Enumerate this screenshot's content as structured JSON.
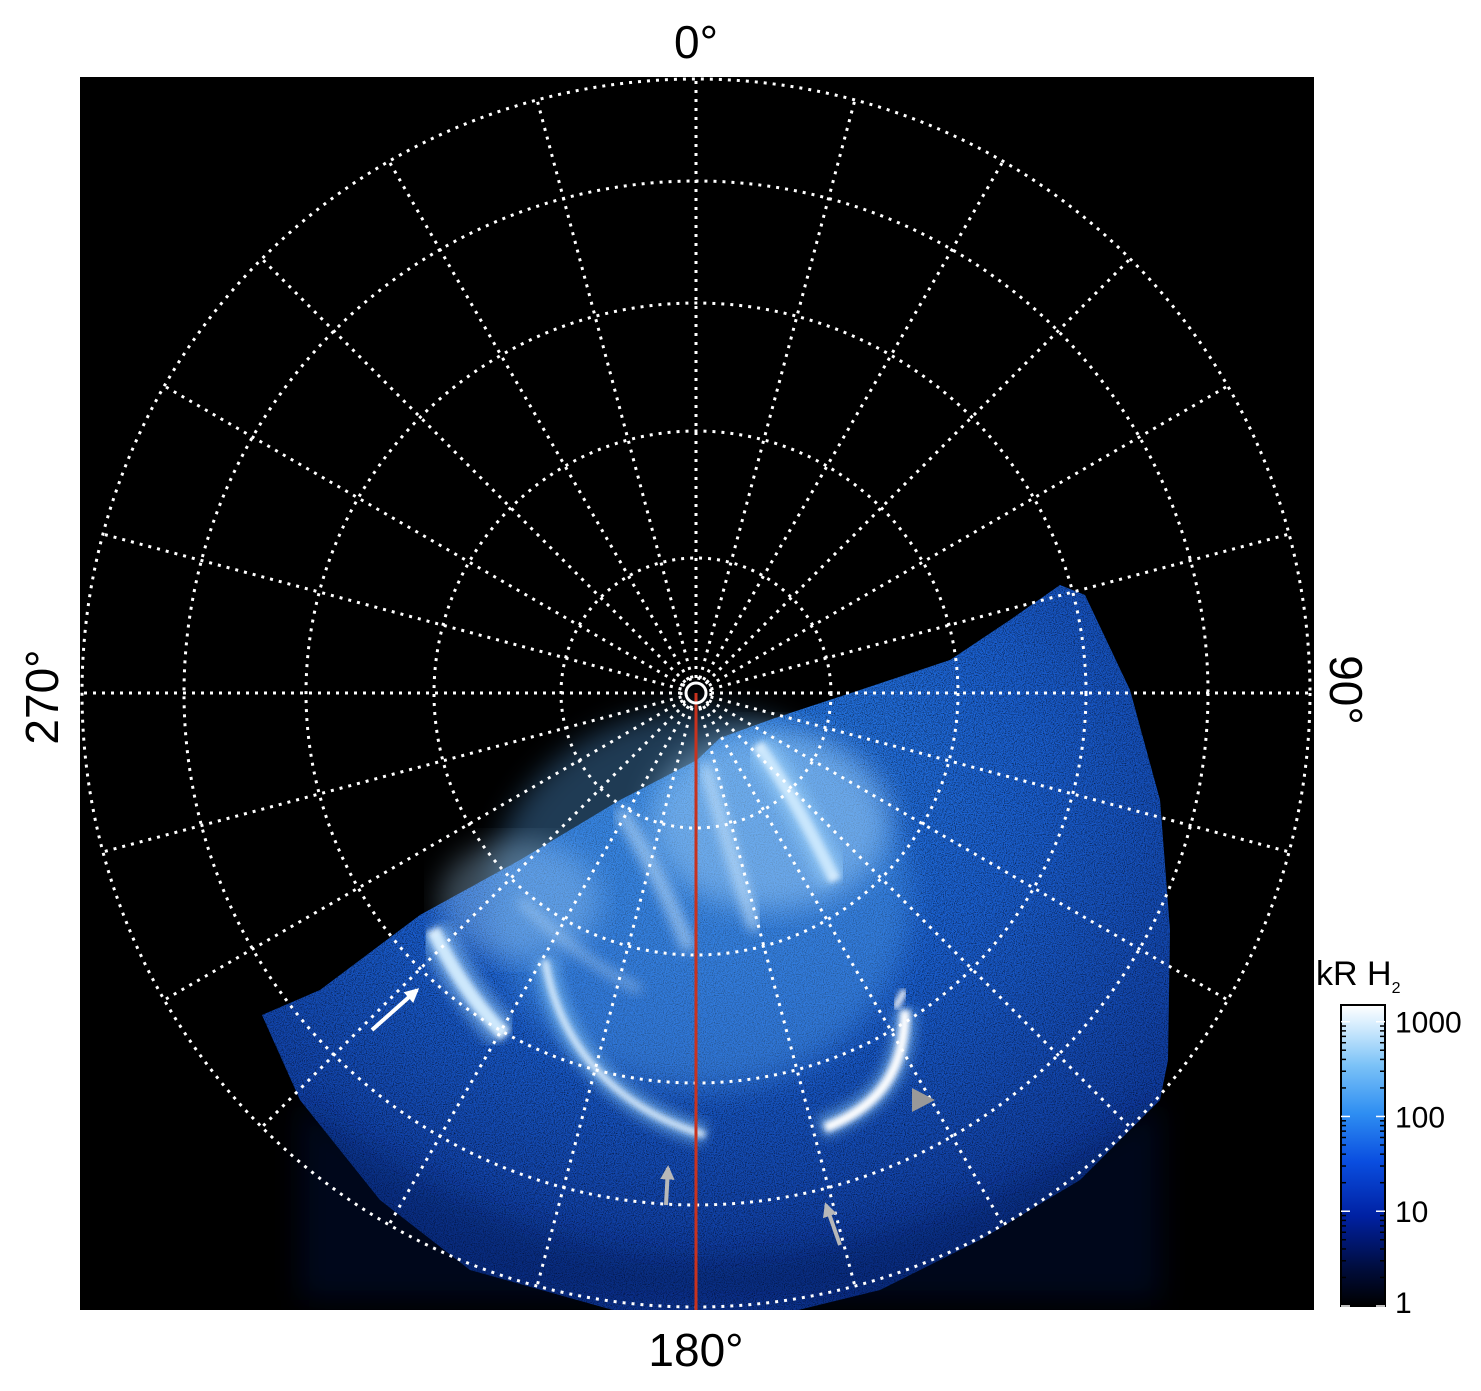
{
  "labels": {
    "top": "0°",
    "bottom": "180°",
    "left": "270°",
    "right": "90°"
  },
  "colorbar": {
    "title_main": "kR H",
    "title_sub": "2",
    "ticks": [
      {
        "label": "1000",
        "value": 1000
      },
      {
        "label": "100",
        "value": 100
      },
      {
        "label": "10",
        "value": 10
      },
      {
        "label": "1",
        "value": 1
      }
    ],
    "min": 1,
    "max": 1500,
    "scale": "log",
    "colors": [
      "#000000",
      "#000c3a",
      "#0021a3",
      "#0a4ee0",
      "#2e8ef2",
      "#7bc2f7",
      "#cde9fd",
      "#ffffff"
    ]
  },
  "image": {
    "background": "#000000",
    "grid_color": "#ffffff",
    "central_meridian_color": "#c8321e",
    "aurora_colors": {
      "base": "#0d3fb8",
      "mid": "#1f6fdf",
      "bright": "#7fc1f5",
      "peak": "#ffffff"
    }
  }
}
